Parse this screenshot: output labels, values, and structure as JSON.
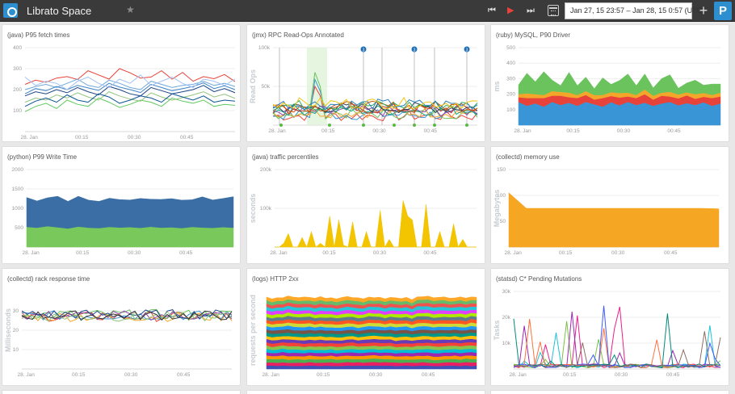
{
  "topbar": {
    "title": "Librato Space",
    "date_range": "Jan 27, 15 23:57 – Jan 28, 15 0:57 (UTC)",
    "controls": {
      "rewind": "⏮",
      "play": "▶",
      "forward": "⏭",
      "plus": "+",
      "profile": "P"
    }
  },
  "x_ticks": [
    "28. Jan",
    "00:15",
    "00:30",
    "00:45"
  ],
  "chart_data": [
    {
      "panel_title": "(java) P95 fetch times",
      "type": "line",
      "ylim": [
        0,
        400
      ],
      "yticks": [
        "400",
        "300",
        "200",
        "100"
      ],
      "ylabel": "",
      "series": [
        {
          "color": "#e8433a",
          "values": [
            225,
            245,
            235,
            255,
            262,
            248,
            290,
            270,
            250,
            300,
            280,
            255,
            260,
            290,
            250,
            282,
            240,
            262,
            252,
            272,
            238
          ]
        },
        {
          "color": "#6fa8dc",
          "values": [
            200,
            215,
            225,
            210,
            230,
            250,
            220,
            210,
            245,
            230,
            210,
            200,
            240,
            225,
            210,
            220,
            225,
            240,
            220,
            230,
            215
          ]
        },
        {
          "color": "#3d85c6",
          "values": [
            180,
            205,
            195,
            215,
            200,
            220,
            208,
            196,
            230,
            212,
            200,
            186,
            225,
            210,
            195,
            205,
            215,
            232,
            205,
            218,
            200
          ]
        },
        {
          "color": "#5fc95f",
          "values": [
            95,
            120,
            135,
            110,
            150,
            130,
            120,
            160,
            140,
            115,
            130,
            150,
            140,
            120,
            160,
            145,
            135,
            150,
            120,
            130,
            125
          ]
        },
        {
          "color": "#1c4587",
          "values": [
            170,
            190,
            180,
            200,
            185,
            210,
            190,
            175,
            215,
            200,
            180,
            170,
            210,
            195,
            180,
            190,
            200,
            220,
            190,
            205,
            185
          ]
        },
        {
          "color": "#93c47d",
          "values": [
            140,
            160,
            150,
            175,
            160,
            185,
            165,
            150,
            190,
            170,
            155,
            145,
            185,
            165,
            150,
            162,
            175,
            190,
            165,
            178,
            158
          ]
        },
        {
          "color": "#a4c2f4",
          "values": [
            260,
            220,
            240,
            230,
            200,
            240,
            260,
            230,
            210,
            250,
            230,
            270,
            220,
            240,
            260,
            230,
            210,
            250,
            240,
            220,
            250
          ]
        },
        {
          "color": "#0b5394",
          "values": [
            120,
            145,
            160,
            140,
            175,
            150,
            140,
            180,
            165,
            135,
            150,
            170,
            160,
            140,
            180,
            165,
            150,
            170,
            140,
            150,
            145
          ]
        }
      ]
    },
    {
      "panel_title": "(jmx) RPC Read-Ops Annotated",
      "type": "line",
      "ylim": [
        0,
        100000
      ],
      "yticks": [
        "100k",
        "50k"
      ],
      "ylabel": "Read Ops",
      "annotation_badge": "3",
      "series": []
    },
    {
      "panel_title": "(ruby) MySQL, P90 Driver",
      "type": "area",
      "stacked": true,
      "ylim": [
        0,
        500
      ],
      "yticks": [
        "500",
        "400",
        "300",
        "200",
        "100"
      ],
      "ylabel": "ms",
      "series": [
        {
          "color": "#3a95d6",
          "values": [
            150,
            125,
            140,
            120,
            150,
            130,
            145,
            125,
            150,
            135,
            120,
            148,
            128,
            150,
            130,
            145,
            125,
            140,
            150,
            128,
            142,
            130,
            148,
            125,
            140
          ]
        },
        {
          "color": "#e8433a",
          "values": [
            30,
            50,
            35,
            55,
            40,
            60,
            35,
            50,
            45,
            30,
            55,
            40,
            50,
            35,
            45,
            55,
            40,
            50,
            35,
            45,
            50,
            40,
            35,
            50,
            45
          ]
        },
        {
          "color": "#f4a62a",
          "values": [
            20,
            30,
            25,
            20,
            30,
            25,
            30,
            20,
            25,
            30,
            20,
            25,
            30,
            25,
            20,
            30,
            25,
            20,
            30,
            25,
            20,
            30,
            25,
            20,
            25
          ]
        },
        {
          "color": "#6ac35d",
          "values": [
            60,
            130,
            80,
            150,
            70,
            40,
            130,
            60,
            90,
            40,
            110,
            50,
            80,
            120,
            60,
            100,
            50,
            90,
            110,
            40,
            60,
            90,
            50,
            70,
            55
          ]
        }
      ]
    },
    {
      "panel_title": "(python) P99 Write Time",
      "type": "area",
      "stacked": true,
      "ylim": [
        0,
        2000
      ],
      "yticks": [
        "2000",
        "1500",
        "1000",
        "500"
      ],
      "ylabel": "",
      "series": [
        {
          "color": "#78c85b",
          "values": [
            520,
            500,
            540,
            510,
            480,
            530,
            500,
            490,
            520,
            505,
            515,
            495,
            525,
            500,
            510,
            490,
            520,
            505,
            495,
            515,
            500
          ]
        },
        {
          "color": "#3a6ea5",
          "values": [
            760,
            690,
            730,
            800,
            700,
            780,
            710,
            690,
            740,
            720,
            700,
            760,
            710,
            730,
            740,
            720,
            700,
            790,
            720,
            740,
            800
          ]
        }
      ]
    },
    {
      "panel_title": "(java) traffic percentiles",
      "type": "area",
      "ylim": [
        0,
        200000
      ],
      "yticks": [
        "200k",
        "100k"
      ],
      "ylabel": "seconds",
      "series": [
        {
          "color": "#f2c500",
          "values": [
            0,
            0,
            10000,
            35000,
            0,
            0,
            25000,
            0,
            40000,
            0,
            10000,
            0,
            80000,
            0,
            70000,
            5000,
            0,
            65000,
            0,
            0,
            40000,
            0,
            0,
            95000,
            0,
            20000,
            0,
            0,
            120000,
            80000,
            70000,
            0,
            0,
            110000,
            0,
            0,
            40000,
            0,
            0,
            60000,
            0,
            20000,
            0,
            0,
            0
          ]
        }
      ]
    },
    {
      "panel_title": "(collectd) memory use",
      "type": "area",
      "ylim": [
        0,
        150
      ],
      "yticks": [
        "150",
        "100",
        "50"
      ],
      "ylabel": "Megabytes",
      "series": [
        {
          "color": "#f5a623",
          "values": [
            105,
            75,
            75,
            75,
            75,
            75,
            75,
            75,
            75,
            75,
            75,
            75,
            74
          ]
        }
      ]
    },
    {
      "panel_title": "(collectd) rack response time",
      "type": "line",
      "ylim": [
        0,
        40
      ],
      "yticks": [
        "30",
        "20",
        "10"
      ],
      "ylabel": "Milliseconds",
      "series": []
    },
    {
      "panel_title": "(logs) HTTP 2xx",
      "type": "area",
      "stacked": true,
      "ylim": [
        0,
        100
      ],
      "yticks": [],
      "ylabel": "requests per second",
      "series": []
    },
    {
      "panel_title": "(statsd) C* Pending Mutations",
      "type": "line",
      "ylim": [
        0,
        30000
      ],
      "yticks": [
        "30k",
        "20k",
        "10k"
      ],
      "ylabel": "Tasks",
      "series": []
    }
  ]
}
